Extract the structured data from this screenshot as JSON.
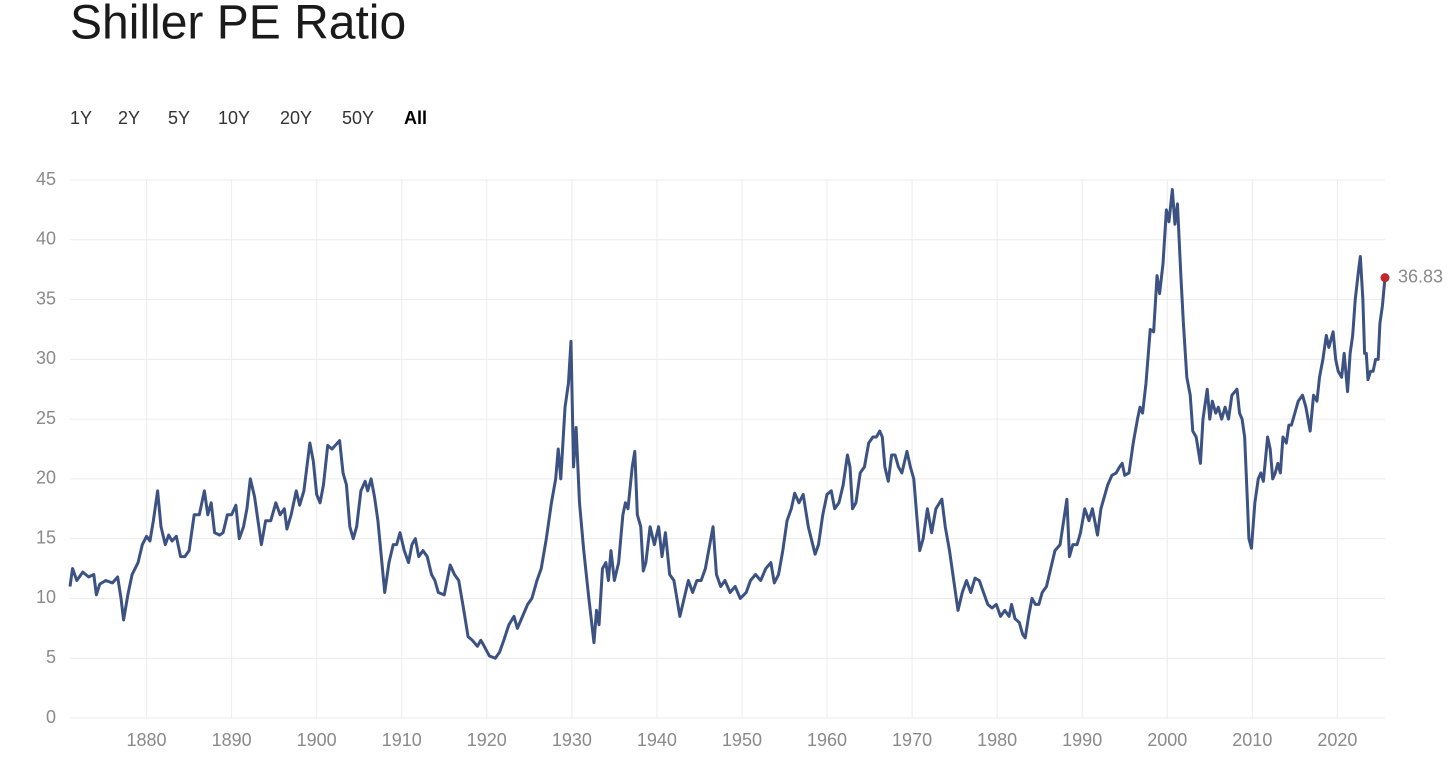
{
  "header": {
    "title": "Shiller PE Ratio"
  },
  "controls": {
    "range_buttons": [
      "1Y",
      "2Y",
      "5Y",
      "10Y",
      "20Y",
      "50Y",
      "All"
    ],
    "selected": 6
  },
  "chart_data": {
    "type": "line",
    "x": [
      1871,
      1871.3,
      1871.8,
      1872.5,
      1873.2,
      1873.8,
      1874.1,
      1874.5,
      1875.2,
      1876,
      1876.6,
      1877,
      1877.3,
      1877.8,
      1878.3,
      1879,
      1879.5,
      1880,
      1880.4,
      1880.8,
      1881.3,
      1881.7,
      1882.2,
      1882.6,
      1883,
      1883.5,
      1884,
      1884.5,
      1885,
      1885.6,
      1886.2,
      1886.8,
      1887.2,
      1887.6,
      1888,
      1888.6,
      1889,
      1889.5,
      1890,
      1890.5,
      1890.9,
      1891.4,
      1891.8,
      1892.2,
      1892.7,
      1893.1,
      1893.5,
      1894,
      1894.6,
      1895.2,
      1895.7,
      1896.2,
      1896.5,
      1897,
      1897.6,
      1898,
      1898.5,
      1899.2,
      1899.6,
      1900,
      1900.4,
      1900.8,
      1901.3,
      1901.8,
      1902.7,
      1903.1,
      1903.5,
      1903.9,
      1904.3,
      1904.7,
      1905.2,
      1905.7,
      1906,
      1906.4,
      1906.8,
      1907.2,
      1907.6,
      1908,
      1908.5,
      1909,
      1909.4,
      1909.8,
      1910.3,
      1910.8,
      1911.2,
      1911.6,
      1912,
      1912.5,
      1913,
      1913.5,
      1913.9,
      1914.3,
      1915,
      1915.7,
      1916.2,
      1916.7,
      1917.3,
      1917.8,
      1918.3,
      1918.9,
      1919.3,
      1919.7,
      1920.3,
      1921,
      1921.5,
      1922,
      1922.6,
      1923.2,
      1923.6,
      1924.2,
      1924.8,
      1925.3,
      1925.9,
      1926.4,
      1927,
      1927.6,
      1928.1,
      1928.4,
      1928.7,
      1929.2,
      1929.6,
      1929.9,
      1930.2,
      1930.5,
      1930.9,
      1931.4,
      1932,
      1932.6,
      1932.9,
      1933.2,
      1933.6,
      1934,
      1934.3,
      1934.6,
      1935,
      1935.5,
      1936,
      1936.3,
      1936.6,
      1937.1,
      1937.4,
      1937.7,
      1938.1,
      1938.4,
      1938.7,
      1939.2,
      1939.7,
      1940.2,
      1940.6,
      1941,
      1941.5,
      1942,
      1942.7,
      1943.2,
      1943.7,
      1944.2,
      1944.7,
      1945.2,
      1945.7,
      1946.6,
      1947,
      1947.5,
      1948,
      1948.6,
      1949.2,
      1949.8,
      1950.5,
      1951,
      1951.6,
      1952.2,
      1952.8,
      1953.4,
      1953.8,
      1954.3,
      1954.8,
      1955.3,
      1955.8,
      1956.2,
      1956.7,
      1957.2,
      1957.8,
      1958.6,
      1959,
      1959.5,
      1960,
      1960.5,
      1960.9,
      1961.4,
      1961.9,
      1962.4,
      1962.7,
      1963,
      1963.4,
      1963.9,
      1964.4,
      1964.9,
      1965.4,
      1965.8,
      1966.2,
      1966.5,
      1966.8,
      1967.2,
      1967.6,
      1968,
      1968.4,
      1968.8,
      1969.4,
      1969.8,
      1970.2,
      1970.6,
      1970.9,
      1971.3,
      1971.8,
      1972.3,
      1972.8,
      1973.5,
      1973.9,
      1974.4,
      1974.9,
      1975.4,
      1975.9,
      1976.4,
      1976.9,
      1977.4,
      1977.9,
      1978.4,
      1978.9,
      1979.4,
      1979.9,
      1980.4,
      1980.9,
      1981.4,
      1981.7,
      1982.1,
      1982.6,
      1983,
      1983.3,
      1983.7,
      1984.1,
      1984.5,
      1984.9,
      1985.3,
      1985.8,
      1986.3,
      1986.8,
      1987.4,
      1988.2,
      1988.5,
      1988.9,
      1989.4,
      1989.8,
      1990.3,
      1990.8,
      1991.2,
      1991.8,
      1992.2,
      1992.6,
      1993,
      1993.5,
      1994,
      1994.4,
      1994.7,
      1995,
      1995.5,
      1996,
      1996.5,
      1996.8,
      1997.1,
      1997.5,
      1998,
      1998.4,
      1998.8,
      1999.1,
      1999.5,
      1999.9,
      2000.2,
      2000.6,
      2000.9,
      2001.2,
      2001.6,
      2001.9,
      2002.3,
      2002.7,
      2003,
      2003.4,
      2003.9,
      2004.2,
      2004.7,
      2005,
      2005.3,
      2005.7,
      2006,
      2006.4,
      2006.8,
      2007.2,
      2007.6,
      2008.2,
      2008.5,
      2008.8,
      2009.1,
      2009.4,
      2009.6,
      2009.9,
      2010.3,
      2010.7,
      2011,
      2011.3,
      2011.8,
      2012.1,
      2012.4,
      2012.7,
      2013,
      2013.3,
      2013.6,
      2014,
      2014.3,
      2014.6,
      2015,
      2015.4,
      2015.9,
      2016.3,
      2016.8,
      2017.2,
      2017.6,
      2017.9,
      2018.3,
      2018.7,
      2019,
      2019.5,
      2019.8,
      2020.1,
      2020.5,
      2020.8,
      2021.2,
      2021.5,
      2021.8,
      2022.1,
      2022.5,
      2022.7,
      2023,
      2023.2,
      2023.4,
      2023.6,
      2023.9,
      2024.2,
      2024.5,
      2024.8,
      2025,
      2025.3,
      2025.6
    ],
    "series": [
      {
        "color": "#3b5283",
        "last_point_color": "#c0282d",
        "values": [
          11,
          12.5,
          11.5,
          12.2,
          11.8,
          12,
          10.3,
          11.2,
          11.5,
          11.3,
          11.8,
          10,
          8.2,
          10.3,
          12,
          13,
          14.5,
          15.2,
          14.8,
          16.5,
          19,
          16,
          14.5,
          15.3,
          14.8,
          15.2,
          13.5,
          13.5,
          14,
          17,
          17,
          19,
          17,
          18,
          15.5,
          15.3,
          15.5,
          17,
          17,
          17.8,
          15,
          16,
          17.5,
          20,
          18.5,
          16.5,
          14.5,
          16.5,
          16.5,
          18,
          17,
          17.5,
          15.8,
          17,
          19,
          17.8,
          19,
          23,
          21.5,
          18.7,
          18,
          19.5,
          22.8,
          22.5,
          23.2,
          20.5,
          19.5,
          16,
          15,
          16,
          19,
          19.8,
          19,
          20,
          18.5,
          16.5,
          13.5,
          10.5,
          13,
          14.5,
          14.5,
          15.5,
          14,
          13,
          14.5,
          15,
          13.5,
          14,
          13.5,
          12,
          11.5,
          10.5,
          10.3,
          12.8,
          12,
          11.5,
          9,
          6.8,
          6.5,
          6,
          6.5,
          6,
          5.2,
          5,
          5.5,
          6.5,
          7.8,
          8.5,
          7.5,
          8.5,
          9.5,
          10,
          11.5,
          12.5,
          15,
          18,
          20,
          22.5,
          20,
          26,
          28,
          31.5,
          21,
          24.3,
          18,
          14,
          10,
          6.3,
          9,
          7.8,
          12.5,
          13,
          11.5,
          14,
          11.5,
          13,
          17,
          18,
          17.5,
          21,
          22.3,
          17,
          16,
          12.3,
          13,
          16,
          14.5,
          16,
          13.5,
          15.5,
          12,
          11.5,
          8.5,
          10,
          11.5,
          10.5,
          11.5,
          11.5,
          12.5,
          16,
          12,
          11,
          11.5,
          10.5,
          11,
          10,
          10.5,
          11.5,
          12,
          11.5,
          12.5,
          13,
          11.3,
          12,
          14,
          16.5,
          17.5,
          18.8,
          18,
          18.7,
          16,
          13.7,
          14.5,
          17,
          18.7,
          19,
          17.5,
          18,
          19.5,
          22,
          21,
          17.5,
          18,
          20.5,
          21,
          23,
          23.5,
          23.5,
          24,
          23.5,
          21,
          19.8,
          22,
          22,
          21,
          20.5,
          22.3,
          21,
          20,
          16.5,
          14,
          15,
          17.5,
          15.5,
          17.5,
          18.3,
          16,
          14,
          11.5,
          9,
          10.5,
          11.5,
          10.5,
          11.7,
          11.5,
          10.5,
          9.5,
          9.2,
          9.5,
          8.5,
          9,
          8.5,
          9.5,
          8.3,
          8,
          7,
          6.7,
          8.5,
          10,
          9.5,
          9.5,
          10.5,
          11,
          12.5,
          14,
          14.5,
          18.3,
          13.5,
          14.5,
          14.5,
          15.5,
          17.5,
          16.5,
          17.5,
          15.3,
          17.5,
          18.5,
          19.5,
          20.3,
          20.5,
          21,
          21.3,
          20.3,
          20.5,
          23,
          25,
          26,
          25.5,
          28,
          32.5,
          32.3,
          37,
          35.5,
          38,
          42.5,
          41.5,
          44.2,
          41.3,
          43,
          37,
          33,
          28.5,
          27,
          24,
          23.5,
          21.3,
          25,
          27.5,
          25,
          26.5,
          25.5,
          26,
          25,
          26,
          25,
          27,
          27.5,
          25.5,
          25,
          23.5,
          18.5,
          15,
          14.2,
          18,
          20,
          20.5,
          19.8,
          23.5,
          22.5,
          20,
          20.5,
          21.3,
          20.5,
          23.5,
          23,
          24.5,
          24.5,
          25.5,
          26.5,
          27,
          26,
          24,
          27,
          26.5,
          28.5,
          30,
          32,
          31,
          32.3,
          30,
          29,
          28.5,
          30.5,
          27.3,
          30.5,
          32,
          35,
          37.5,
          38.6,
          35,
          30.5,
          30.5,
          28.3,
          29,
          29,
          30,
          30,
          33,
          34.5,
          36.83
        ]
      }
    ],
    "xlim": [
      1871,
      2025.6
    ],
    "xticks": [
      1880,
      1890,
      1900,
      1910,
      1920,
      1930,
      1940,
      1950,
      1960,
      1970,
      1980,
      1990,
      2000,
      2010,
      2020
    ],
    "ylim": [
      0,
      45
    ],
    "yticks": [
      0,
      5,
      10,
      15,
      20,
      25,
      30,
      35,
      40,
      45
    ],
    "grid": true,
    "label_last_point": true
  }
}
